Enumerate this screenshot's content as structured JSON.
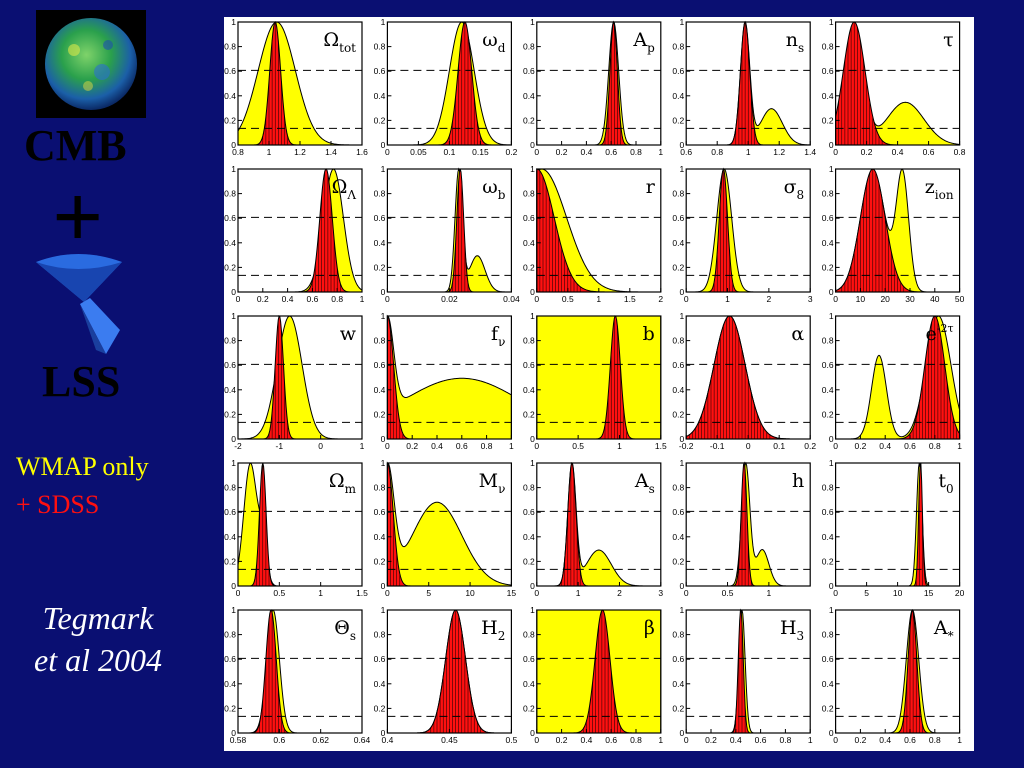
{
  "sidebar": {
    "cmb_label": "CMB",
    "plus": "+",
    "lss_label": "LSS",
    "legend": [
      {
        "label": "WMAP only",
        "color": "#ffff00"
      },
      {
        "label": "+ SDSS",
        "color": "#ff1010"
      }
    ],
    "citation": [
      "Tegmark",
      "et al 2004"
    ]
  },
  "chart_data": {
    "type": "area",
    "grid_rows": 5,
    "grid_cols": 5,
    "y_ticks": [
      0,
      0.2,
      0.4,
      0.6,
      0.8,
      1
    ],
    "dashed_levels": [
      0.135,
      0.607
    ],
    "wmap_color": "#ffff00",
    "sdss_color": "#ff1010",
    "panels": [
      {
        "name": "Ω",
        "sub": "tot",
        "xlim": [
          0.8,
          1.6
        ],
        "ticks": [
          "0.8",
          "1",
          "1.2",
          "1.4",
          "1.6"
        ],
        "wmap": [
          {
            "m": 1.05,
            "s": 0.12,
            "a": 1
          }
        ],
        "sdss": [
          {
            "m": 1.04,
            "s": 0.035,
            "a": 1
          }
        ]
      },
      {
        "name": "ω",
        "sub": "d",
        "xlim": [
          0,
          0.2
        ],
        "ticks": [
          "0",
          "0.05",
          "0.1",
          "0.15",
          "0.2"
        ],
        "wmap": [
          {
            "m": 0.12,
            "s": 0.02,
            "a": 1
          }
        ],
        "sdss": [
          {
            "m": 0.125,
            "s": 0.011,
            "a": 1
          }
        ]
      },
      {
        "name": "A",
        "sub": "p",
        "xlim": [
          0,
          1
        ],
        "ticks": [
          "0",
          "0.2",
          "0.4",
          "0.6",
          "0.8",
          "1"
        ],
        "wmap": [
          {
            "m": 0.62,
            "s": 0.04,
            "a": 1
          }
        ],
        "sdss": [
          {
            "m": 0.62,
            "s": 0.03,
            "a": 1
          }
        ]
      },
      {
        "name": "n",
        "sub": "s",
        "xlim": [
          0.6,
          1.4
        ],
        "ticks": [
          "0.6",
          "0.8",
          "1",
          "1.2",
          "1.4"
        ],
        "wmap": [
          {
            "m": 0.98,
            "s": 0.03,
            "a": 1
          },
          {
            "m": 1.15,
            "s": 0.07,
            "a": 0.3
          }
        ],
        "sdss": [
          {
            "m": 0.98,
            "s": 0.03,
            "a": 1
          }
        ]
      },
      {
        "name": "τ",
        "sub": "",
        "xlim": [
          0,
          0.8
        ],
        "ticks": [
          "0",
          "0.2",
          "0.4",
          "0.6",
          "0.8"
        ],
        "wmap": [
          {
            "m": 0.12,
            "s": 0.06,
            "a": 1
          },
          {
            "m": 0.45,
            "s": 0.12,
            "a": 0.35
          }
        ],
        "sdss": [
          {
            "m": 0.12,
            "s": 0.07,
            "a": 1
          }
        ]
      },
      {
        "name": "Ω",
        "sub": "Λ",
        "xlim": [
          0,
          1
        ],
        "ticks": [
          "0",
          "0.2",
          "0.4",
          "0.6",
          "0.8",
          "1"
        ],
        "wmap": [
          {
            "m": 0.77,
            "s": 0.08,
            "a": 1
          }
        ],
        "sdss": [
          {
            "m": 0.71,
            "s": 0.05,
            "a": 1
          }
        ]
      },
      {
        "name": "ω",
        "sub": "b",
        "xlim": [
          0,
          0.04
        ],
        "ticks": [
          "0",
          "0.02",
          "0.04"
        ],
        "wmap": [
          {
            "m": 0.023,
            "s": 0.0012,
            "a": 1
          },
          {
            "m": 0.029,
            "s": 0.0025,
            "a": 0.3
          }
        ],
        "sdss": [
          {
            "m": 0.0235,
            "s": 0.0011,
            "a": 1
          }
        ]
      },
      {
        "name": "r",
        "sub": "",
        "xlim": [
          0,
          2
        ],
        "ticks": [
          "0",
          "0.5",
          "1",
          "1.5",
          "2"
        ],
        "wmap": [
          {
            "m": 0.08,
            "s": 0.4,
            "a": 1
          }
        ],
        "sdss": [
          {
            "m": 0.0,
            "s": 0.28,
            "a": 1
          }
        ]
      },
      {
        "name": "σ",
        "sub": "8",
        "xlim": [
          0,
          3
        ],
        "ticks": [
          "0",
          "1",
          "2",
          "3"
        ],
        "wmap": [
          {
            "m": 0.92,
            "s": 0.18,
            "a": 1
          }
        ],
        "sdss": [
          {
            "m": 0.9,
            "s": 0.1,
            "a": 1
          }
        ]
      },
      {
        "name": "z",
        "sub": "ion",
        "xlim": [
          0,
          50
        ],
        "ticks": [
          "0",
          "10",
          "20",
          "30",
          "40",
          "50"
        ],
        "wmap": [
          {
            "m": 15,
            "s": 5,
            "a": 1
          },
          {
            "m": 27,
            "s": 2.5,
            "a": 0.95
          }
        ],
        "sdss": [
          {
            "m": 15,
            "s": 5,
            "a": 1
          }
        ]
      },
      {
        "name": "w",
        "sub": "",
        "xlim": [
          -2,
          1
        ],
        "ticks": [
          "-2",
          "-1",
          "0",
          "1"
        ],
        "wmap": [
          {
            "m": -0.75,
            "s": 0.3,
            "a": 1
          }
        ],
        "sdss": [
          {
            "m": -1.0,
            "s": 0.1,
            "a": 1
          }
        ]
      },
      {
        "name": "f",
        "sub": "ν",
        "xlim": [
          0,
          1
        ],
        "ticks": [
          "0",
          "0.2",
          "0.4",
          "0.6",
          "0.8",
          "1"
        ],
        "wmap": [
          {
            "m": 0.0,
            "s": 0.05,
            "a": 1
          },
          {
            "m": 0.6,
            "s": 0.5,
            "a": 0.65
          }
        ],
        "sdss": [
          {
            "m": 0.0,
            "s": 0.05,
            "a": 1
          }
        ]
      },
      {
        "name": "b",
        "sub": "",
        "xlim": [
          0,
          1.5
        ],
        "ticks": [
          "0",
          "0.5",
          "1",
          "1.5"
        ],
        "wmap": [
          {
            "m": 0.75,
            "s": 99,
            "a": 1
          }
        ],
        "sdss": [
          {
            "m": 0.95,
            "s": 0.06,
            "a": 1
          }
        ]
      },
      {
        "name": "α",
        "sub": "",
        "xlim": [
          -0.2,
          0.2
        ],
        "ticks": [
          "-0.2",
          "-0.1",
          "0",
          "0.1",
          "0.2"
        ],
        "wmap": [
          {
            "m": -0.06,
            "s": 0.05,
            "a": 1
          }
        ],
        "sdss": [
          {
            "m": -0.06,
            "s": 0.05,
            "a": 1
          }
        ]
      },
      {
        "name": "e",
        "sub": "",
        "sup": "-2τ",
        "xlim": [
          0,
          1
        ],
        "ticks": [
          "0",
          "0.2",
          "0.4",
          "0.6",
          "0.8",
          "1"
        ],
        "wmap": [
          {
            "m": 0.35,
            "s": 0.06,
            "a": 0.68
          },
          {
            "m": 0.83,
            "s": 0.1,
            "a": 1
          }
        ],
        "sdss": [
          {
            "m": 0.8,
            "s": 0.08,
            "a": 1
          }
        ]
      },
      {
        "name": "Ω",
        "sub": "m",
        "xlim": [
          0,
          1.5
        ],
        "ticks": [
          "0",
          "0.5",
          "1",
          "1.5"
        ],
        "wmap": [
          {
            "m": 0.15,
            "s": 0.08,
            "a": 0.95
          },
          {
            "m": 0.3,
            "s": 0.05,
            "a": 0.3
          }
        ],
        "sdss": [
          {
            "m": 0.3,
            "s": 0.04,
            "a": 1
          }
        ]
      },
      {
        "name": "M",
        "sub": "ν",
        "xlim": [
          0,
          15
        ],
        "ticks": [
          "0",
          "5",
          "10",
          "15"
        ],
        "wmap": [
          {
            "m": 0.0,
            "s": 0.8,
            "a": 1
          },
          {
            "m": 6,
            "s": 3,
            "a": 0.75
          }
        ],
        "sdss": [
          {
            "m": 0.0,
            "s": 0.7,
            "a": 1
          }
        ]
      },
      {
        "name": "A",
        "sub": "s",
        "xlim": [
          0,
          3
        ],
        "ticks": [
          "0",
          "1",
          "2",
          "3"
        ],
        "wmap": [
          {
            "m": 0.85,
            "s": 0.1,
            "a": 1
          },
          {
            "m": 1.5,
            "s": 0.3,
            "a": 0.3
          }
        ],
        "sdss": [
          {
            "m": 0.85,
            "s": 0.1,
            "a": 1
          }
        ]
      },
      {
        "name": "h",
        "sub": "",
        "xlim": [
          0,
          1.5
        ],
        "ticks": [
          "0",
          "0.5",
          "1"
        ],
        "wmap": [
          {
            "m": 0.72,
            "s": 0.05,
            "a": 1
          },
          {
            "m": 0.92,
            "s": 0.08,
            "a": 0.3
          }
        ],
        "sdss": [
          {
            "m": 0.7,
            "s": 0.035,
            "a": 1
          }
        ]
      },
      {
        "name": "t",
        "sub": "0",
        "xlim": [
          0,
          20
        ],
        "ticks": [
          "0",
          "5",
          "10",
          "15",
          "20"
        ],
        "wmap": [
          {
            "m": 13.5,
            "s": 0.45,
            "a": 1
          }
        ],
        "sdss": [
          {
            "m": 13.7,
            "s": 0.3,
            "a": 1
          }
        ]
      },
      {
        "name": "Θ",
        "sub": "s",
        "xlim": [
          0.58,
          0.64
        ],
        "ticks": [
          "0.58",
          "0.6",
          "0.62",
          "0.64"
        ],
        "wmap": [
          {
            "m": 0.597,
            "s": 0.003,
            "a": 1
          }
        ],
        "sdss": [
          {
            "m": 0.596,
            "s": 0.0025,
            "a": 1
          }
        ]
      },
      {
        "name": "H",
        "sub": "2",
        "xlim": [
          0.4,
          0.5
        ],
        "ticks": [
          "0.4",
          "0.45",
          "0.5"
        ],
        "wmap": [
          {
            "m": 0.455,
            "s": 0.008,
            "a": 1
          }
        ],
        "sdss": [
          {
            "m": 0.455,
            "s": 0.008,
            "a": 1
          }
        ]
      },
      {
        "name": "β",
        "sub": "",
        "xlim": [
          0,
          1
        ],
        "ticks": [
          "0",
          "0.2",
          "0.4",
          "0.6",
          "0.8",
          "1"
        ],
        "wmap": [
          {
            "m": 0.5,
            "s": 99,
            "a": 1
          }
        ],
        "sdss": [
          {
            "m": 0.53,
            "s": 0.06,
            "a": 1
          }
        ]
      },
      {
        "name": "H",
        "sub": "3",
        "xlim": [
          0,
          1
        ],
        "ticks": [
          "0",
          "0.2",
          "0.4",
          "0.6",
          "0.8",
          "1"
        ],
        "wmap": [
          {
            "m": 0.45,
            "s": 0.025,
            "a": 1
          }
        ],
        "sdss": [
          {
            "m": 0.44,
            "s": 0.02,
            "a": 1
          }
        ]
      },
      {
        "name": "A",
        "sub": "*",
        "xlim": [
          0,
          1
        ],
        "ticks": [
          "0",
          "0.2",
          "0.4",
          "0.6",
          "0.8",
          "1"
        ],
        "wmap": [
          {
            "m": 0.62,
            "s": 0.05,
            "a": 1
          }
        ],
        "sdss": [
          {
            "m": 0.62,
            "s": 0.035,
            "a": 1
          }
        ]
      }
    ]
  }
}
